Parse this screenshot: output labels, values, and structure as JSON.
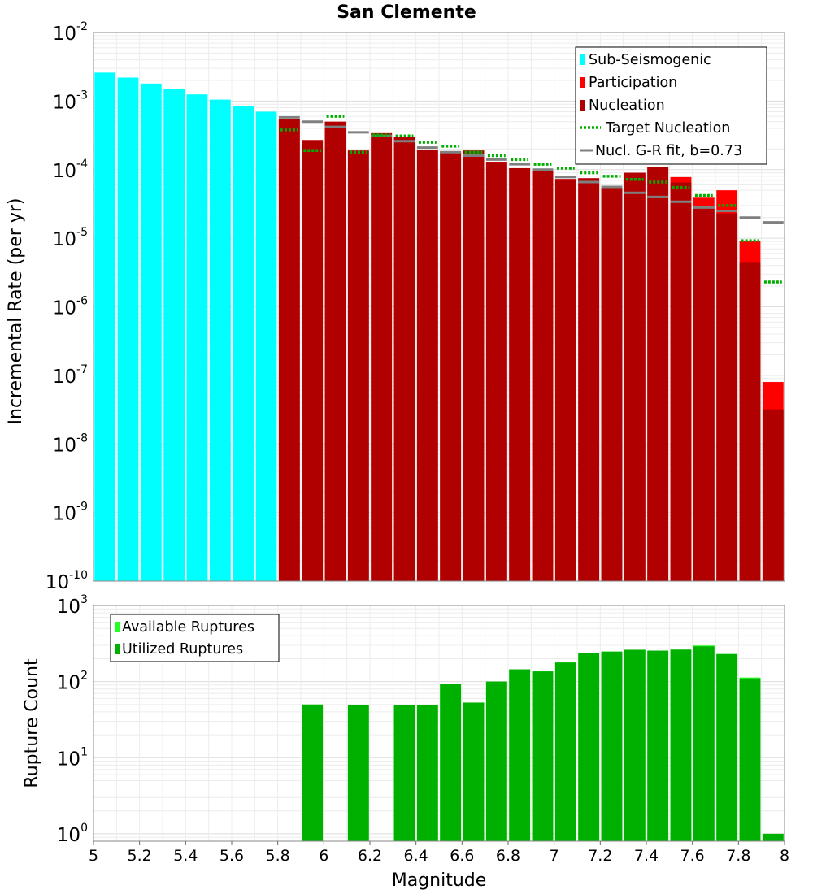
{
  "chart_data": [
    {
      "type": "bar",
      "title": "San Clemente",
      "xlabel": "",
      "ylabel": "Incremental Rate (per yr)",
      "yscale": "log",
      "ylim_exponents": [
        -10,
        -2
      ],
      "y_ticks": [
        {
          "base": "10",
          "exp": "-2"
        },
        {
          "base": "10",
          "exp": "-3"
        },
        {
          "base": "10",
          "exp": "-4"
        },
        {
          "base": "10",
          "exp": "-5"
        },
        {
          "base": "10",
          "exp": "-6"
        },
        {
          "base": "10",
          "exp": "-7"
        },
        {
          "base": "10",
          "exp": "-8"
        },
        {
          "base": "10",
          "exp": "-9"
        },
        {
          "base": "10",
          "exp": "-10"
        }
      ],
      "xlim": [
        5,
        8
      ],
      "bin_width": 0.1,
      "legend": [
        {
          "label": "Sub-Seismogenic",
          "color": "#00ffff",
          "style": "box"
        },
        {
          "label": "Participation",
          "color": "#ff0000",
          "style": "box"
        },
        {
          "label": "Nucleation",
          "color": "#b00000",
          "style": "box"
        },
        {
          "label": "Target Nucleation",
          "color": "#00b000",
          "style": "dotted"
        },
        {
          "label": "Nucl. G-R fit, b=0.73",
          "color": "#808080",
          "style": "line"
        }
      ],
      "sub_seismogenic": {
        "color": "#00ffff",
        "x": [
          5.05,
          5.15,
          5.25,
          5.35,
          5.45,
          5.55,
          5.65,
          5.75
        ],
        "values": [
          0.0026,
          0.0022,
          0.0018,
          0.0015,
          0.00125,
          0.00105,
          0.00085,
          0.0007
        ]
      },
      "participation": {
        "color": "#ff0000",
        "x": [
          5.85,
          5.95,
          6.05,
          6.15,
          6.25,
          6.35,
          6.45,
          6.55,
          6.65,
          6.75,
          6.85,
          6.95,
          7.05,
          7.15,
          7.25,
          7.35,
          7.45,
          7.55,
          7.65,
          7.75,
          7.85,
          7.95
        ],
        "values": [
          0.00055,
          0.00027,
          0.0005,
          0.00019,
          0.00034,
          0.0003,
          0.000195,
          0.000185,
          0.00019,
          0.00013,
          0.000105,
          9.5e-05,
          7.3e-05,
          7.5e-05,
          5.5e-05,
          9e-05,
          0.00011,
          7.8e-05,
          3.9e-05,
          5e-05,
          9e-06,
          8e-08
        ]
      },
      "nucleation": {
        "color": "#b00000",
        "x": [
          5.85,
          5.95,
          6.05,
          6.15,
          6.25,
          6.35,
          6.45,
          6.55,
          6.65,
          6.75,
          6.85,
          6.95,
          7.05,
          7.15,
          7.25,
          7.35,
          7.45,
          7.55,
          7.65,
          7.75,
          7.85,
          7.95
        ],
        "values": [
          0.00055,
          0.00027,
          0.0005,
          0.00019,
          0.00034,
          0.0003,
          0.000195,
          0.000185,
          0.00019,
          0.00013,
          0.000105,
          9.5e-05,
          7.3e-05,
          7.5e-05,
          5.5e-05,
          9e-05,
          0.00011,
          6.5e-05,
          2.7e-05,
          2.3e-05,
          4.5e-06,
          3.2e-08
        ]
      },
      "target_nucleation": {
        "color": "#00b000",
        "x": [
          5.85,
          5.95,
          6.05,
          6.15,
          6.25,
          6.35,
          6.45,
          6.55,
          6.65,
          6.75,
          6.85,
          6.95,
          7.05,
          7.15,
          7.25,
          7.35,
          7.45,
          7.55,
          7.65,
          7.75,
          7.85,
          7.95
        ],
        "values": [
          0.00038,
          0.00019,
          0.0006,
          0.00018,
          0.00032,
          0.00031,
          0.00025,
          0.00022,
          0.00018,
          0.00016,
          0.00014,
          0.00012,
          0.000105,
          9e-05,
          8e-05,
          7.2e-05,
          6.6e-05,
          5.5e-05,
          4.2e-05,
          3e-05,
          9.2e-06,
          2.3e-06
        ]
      },
      "gr_fit": {
        "color": "#808080",
        "x": [
          5.85,
          5.95,
          6.05,
          6.15,
          6.25,
          6.35,
          6.45,
          6.55,
          6.65,
          6.75,
          6.85,
          6.95,
          7.05,
          7.15,
          7.25,
          7.35,
          7.45,
          7.55,
          7.65,
          7.75,
          7.85,
          7.95
        ],
        "values": [
          0.00058,
          0.0005,
          0.00042,
          0.00035,
          0.00031,
          0.00026,
          0.00021,
          0.00018,
          0.00016,
          0.00014,
          0.00012,
          0.0001,
          7.8e-05,
          6.6e-05,
          5.6e-05,
          4.6e-05,
          4e-05,
          3.4e-05,
          2.8e-05,
          2.5e-05,
          2e-05,
          1.7e-05
        ]
      }
    },
    {
      "type": "bar",
      "title": "",
      "xlabel": "Magnitude",
      "ylabel": "Rupture Count",
      "yscale": "log",
      "ylim_exponents": [
        0,
        3
      ],
      "ylim": [
        0.8,
        1000
      ],
      "y_ticks": [
        {
          "base": "10",
          "exp": "3"
        },
        {
          "base": "10",
          "exp": "2"
        },
        {
          "base": "10",
          "exp": "1"
        },
        {
          "base": "10",
          "exp": "0"
        }
      ],
      "xlim": [
        5,
        8
      ],
      "x_ticks": [
        "5",
        "5.2",
        "5.4",
        "5.6",
        "5.8",
        "6",
        "6.2",
        "6.4",
        "6.6",
        "6.8",
        "7",
        "7.2",
        "7.4",
        "7.6",
        "7.8",
        "8"
      ],
      "legend": [
        {
          "label": "Available Ruptures",
          "color": "#22ff22"
        },
        {
          "label": "Utilized Ruptures",
          "color": "#00b000"
        }
      ],
      "available": {
        "color": "#22ff22",
        "x": [
          5.95,
          6.15,
          6.35,
          6.45,
          6.55,
          6.65,
          6.75,
          6.85,
          6.95,
          7.05,
          7.15,
          7.25,
          7.35,
          7.45,
          7.55,
          7.65,
          7.75,
          7.85,
          7.95
        ],
        "values": [
          50,
          49,
          49,
          49,
          94,
          53,
          100,
          145,
          136,
          178,
          235,
          248,
          262,
          255,
          263,
          298,
          230,
          113,
          1
        ]
      },
      "utilized": {
        "color": "#00b000",
        "x": [
          5.95,
          6.15,
          6.35,
          6.45,
          6.55,
          6.65,
          6.75,
          6.85,
          6.95,
          7.05,
          7.15,
          7.25,
          7.35,
          7.45,
          7.55,
          7.65,
          7.75,
          7.85,
          7.95
        ],
        "values": [
          50,
          49,
          49,
          49,
          94,
          53,
          100,
          145,
          136,
          178,
          235,
          248,
          262,
          255,
          263,
          290,
          230,
          110,
          1
        ]
      }
    }
  ]
}
